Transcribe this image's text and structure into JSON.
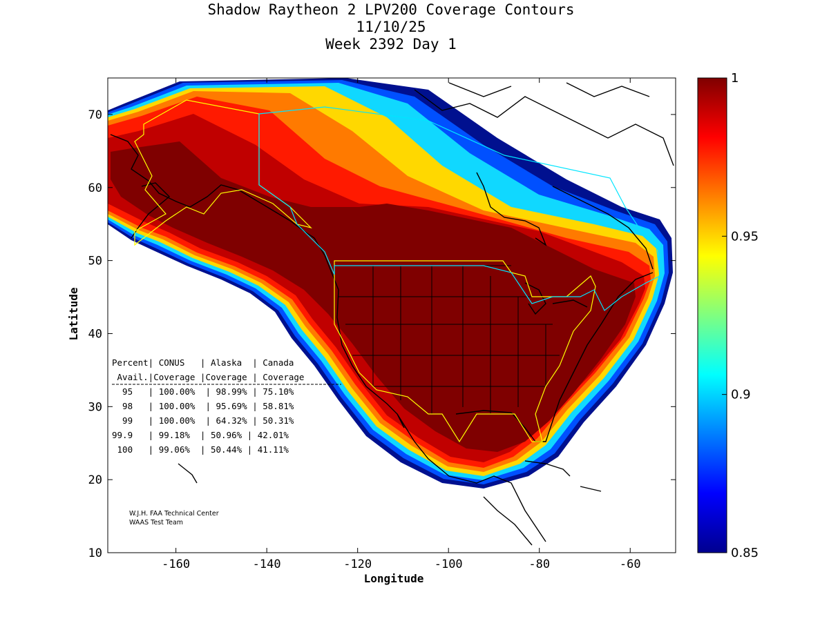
{
  "title": {
    "line1": "Shadow Raytheon 2 LPV200 Coverage Contours",
    "line2": "11/10/25",
    "line3": "Week 2392 Day 1"
  },
  "axes": {
    "xlabel": "Longitude",
    "ylabel": "Latitude",
    "xlim": [
      -175,
      -50
    ],
    "ylim": [
      10,
      75
    ],
    "xticks": [
      -160,
      -140,
      -120,
      -100,
      -80,
      -60
    ],
    "yticks": [
      10,
      20,
      30,
      40,
      50,
      60,
      70
    ],
    "xtick_labels": [
      "-160",
      "-140",
      "-120",
      "-100",
      "-80",
      "-60"
    ],
    "ytick_labels": [
      "10",
      "20",
      "30",
      "40",
      "50",
      "60",
      "70"
    ]
  },
  "colorbar": {
    "min": 0.85,
    "max": 1,
    "labels": [
      "1",
      "0.95",
      "0.9",
      "0.85"
    ],
    "label_values": [
      1,
      0.95,
      0.9,
      0.85
    ]
  },
  "table": {
    "lines": [
      "Percent| CONUS   | Alaska  | Canada",
      " Avail.|Coverage |Coverage | Coverage",
      "  95   | 100.00%  | 98.99% | 75.10%",
      "  98   | 100.00%  | 95.69% | 58.81%",
      "  99   | 100.00%  | 64.32% | 50.31%",
      "99.9   | 99.18%  | 50.96% | 42.01%",
      " 100   | 99.06%  | 50.44% | 41.11%"
    ]
  },
  "credits": {
    "line1": "W.J.H. FAA Technical Center",
    "line2": "WAAS Test Team"
  },
  "colors": {
    "core": "#7f0000",
    "coverage_red": "#ff2000",
    "coverage_orange": "#ff8000",
    "coverage_yellow": "#ffd000",
    "coverage_cyan": "#20d0ff",
    "coverage_blue": "#0030ff",
    "coverage_navy": "#000080",
    "conus_boundary": "#ffff00",
    "canada_boundary": "#00e5ff"
  }
}
